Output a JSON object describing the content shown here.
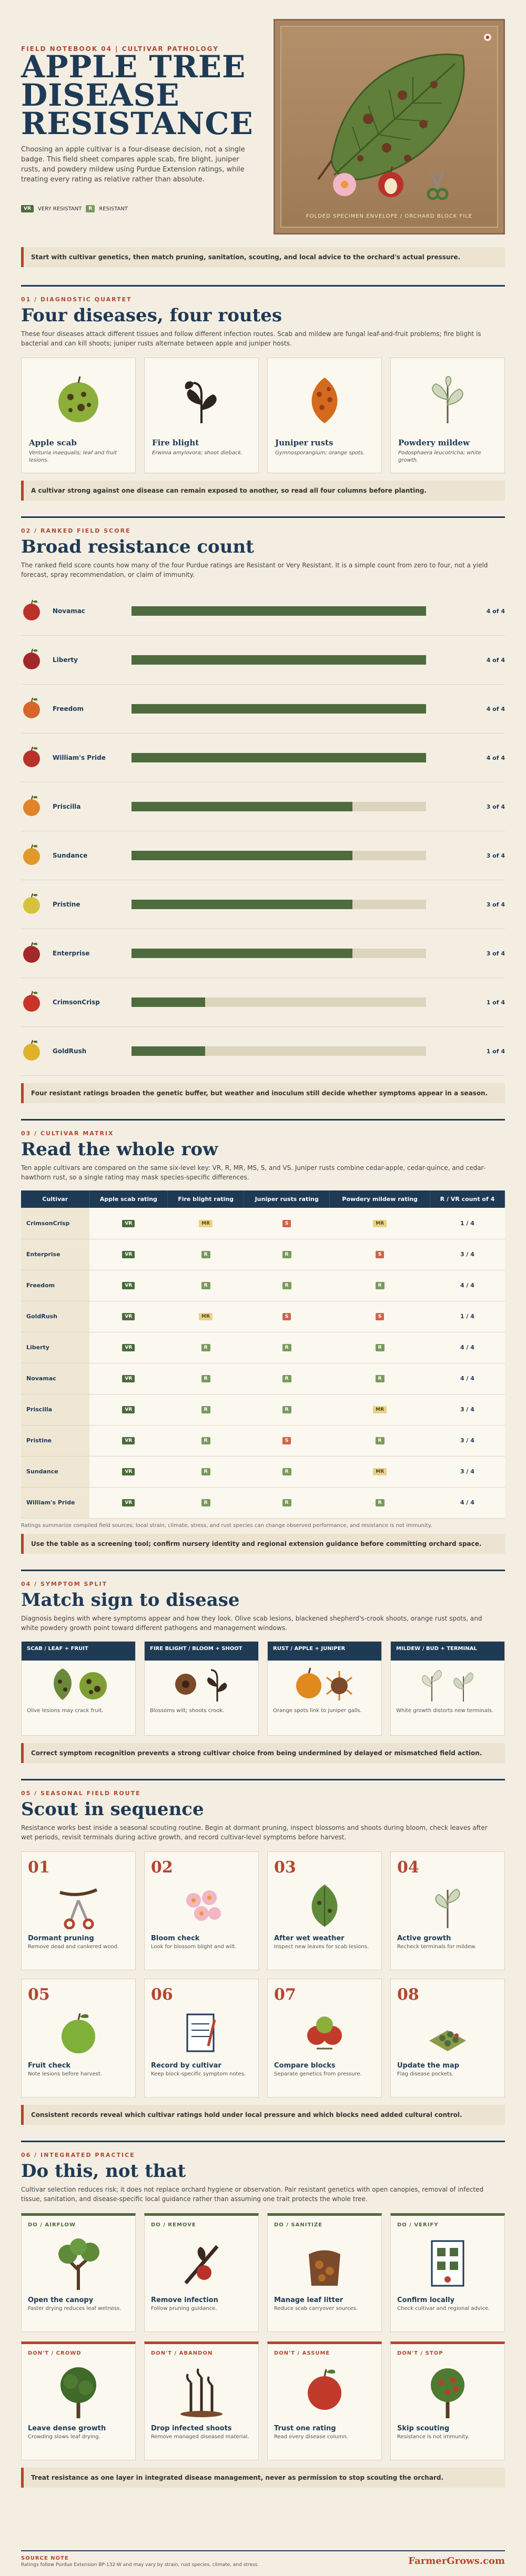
{
  "hero": {
    "kicker": "FIELD NOTEBOOK 04 | CULTIVAR PATHOLOGY",
    "title_lines": [
      "APPLE TREE",
      "DISEASE",
      "RESISTANCE"
    ],
    "intro": "Choosing an apple cultivar is a four-disease decision, not a single badge. This field sheet compares apple scab, fire blight, juniper rusts, and powdery mildew using Purdue Extension ratings, while treating every rating as relative rather than absolute.",
    "legend_vr": "VR",
    "legend_vr_label": "VERY RESISTANT",
    "legend_r": "R",
    "legend_r_label": "RESISTANT",
    "plate_caption": "FOLDED SPECIMEN ENVELOPE / ORCHARD BLOCK FILE"
  },
  "callout_top": "Start with cultivar genetics, then match pruning, sanitation, scouting, and local advice to the orchard's actual pressure.",
  "diseases": {
    "kicker": "01 / DIAGNOSTIC QUARTET",
    "title": "Four diseases, four routes",
    "intro": "These four diseases attack different tissues and follow different infection routes. Scab and mildew are fungal leaf-and-fruit problems; fire blight is bacterial and can kill shoots; juniper rusts alternate between apple and juniper hosts.",
    "cards": [
      {
        "name": "Apple scab",
        "sci": "Venturia inaequalis; leaf and fruit lesions."
      },
      {
        "name": "Fire blight",
        "sci": "Erwinia amylovora; shoot dieback."
      },
      {
        "name": "Juniper rusts",
        "sci": "Gymnosporangium; orange spots."
      },
      {
        "name": "Powdery mildew",
        "sci": "Podosphaera leucotricha; white growth."
      }
    ],
    "callout": "A cultivar strong against one disease can remain exposed to another, so read all four columns before planting."
  },
  "ranked": {
    "kicker": "02 / RANKED FIELD SCORE",
    "title": "Broad resistance count",
    "intro": "The ranked field score counts how many of the four Purdue ratings are Resistant or Very Resistant. It is a simple count from zero to four, not a yield forecast, spray recommendation, or claim of immunity.",
    "callout": "Four resistant ratings broaden the genetic buffer, but weather and inoculum still decide whether symptoms appear in a season."
  },
  "chart_data": {
    "type": "bar",
    "categories": [
      "Novamac",
      "Liberty",
      "Freedom",
      "William's Pride",
      "Priscilla",
      "Sundance",
      "Pristine",
      "Enterprise",
      "CrimsonCrisp",
      "GoldRush"
    ],
    "values": [
      4,
      4,
      4,
      4,
      3,
      3,
      3,
      3,
      1,
      1
    ],
    "value_labels": [
      "4 of 4",
      "4 of 4",
      "4 of 4",
      "4 of 4",
      "3 of 4",
      "3 of 4",
      "3 of 4",
      "3 of 4",
      "1 of 4",
      "1 of 4"
    ],
    "xlim": [
      0,
      4
    ],
    "orientation": "horizontal"
  },
  "matrix": {
    "kicker": "03 / CULTIVAR MATRIX",
    "title": "Read the whole row",
    "intro": "Ten apple cultivars are compared on the same six-level key: VR, R, MR, MS, S, and VS. Juniper rusts combine cedar-apple, cedar-quince, and cedar-hawthorn rust, so a single rating may mask species-specific differences.",
    "headers": [
      "Cultivar",
      "Apple scab rating",
      "Fire blight rating",
      "Juniper rusts rating",
      "Powdery mildew rating",
      "R / VR count of 4"
    ],
    "rows": [
      {
        "name": "CrimsonCrisp",
        "scab": "VR",
        "blight": "MR",
        "rust": "S",
        "mildew": "MR",
        "count": "1 / 4"
      },
      {
        "name": "Enterprise",
        "scab": "VR",
        "blight": "R",
        "rust": "R",
        "mildew": "S",
        "count": "3 / 4"
      },
      {
        "name": "Freedom",
        "scab": "VR",
        "blight": "R",
        "rust": "R",
        "mildew": "R",
        "count": "4 / 4"
      },
      {
        "name": "GoldRush",
        "scab": "VR",
        "blight": "MR",
        "rust": "S",
        "mildew": "S",
        "count": "1 / 4"
      },
      {
        "name": "Liberty",
        "scab": "VR",
        "blight": "R",
        "rust": "R",
        "mildew": "R",
        "count": "4 / 4"
      },
      {
        "name": "Novamac",
        "scab": "VR",
        "blight": "R",
        "rust": "R",
        "mildew": "R",
        "count": "4 / 4"
      },
      {
        "name": "Priscilla",
        "scab": "VR",
        "blight": "R",
        "rust": "R",
        "mildew": "MR",
        "count": "3 / 4"
      },
      {
        "name": "Pristine",
        "scab": "VR",
        "blight": "R",
        "rust": "S",
        "mildew": "R",
        "count": "3 / 4"
      },
      {
        "name": "Sundance",
        "scab": "VR",
        "blight": "R",
        "rust": "R",
        "mildew": "MR",
        "count": "3 / 4"
      },
      {
        "name": "William's Pride",
        "scab": "VR",
        "blight": "R",
        "rust": "R",
        "mildew": "R",
        "count": "4 / 4"
      }
    ],
    "note": "Ratings summarize compiled field sources; local strain, climate, stress, and rust species can change observed performance, and resistance is not immunity.",
    "callout": "Use the table as a screening tool; confirm nursery identity and regional extension guidance before committing orchard space."
  },
  "symptoms": {
    "kicker": "04 / SYMPTOM SPLIT",
    "title": "Match sign to disease",
    "intro": "Diagnosis begins with where symptoms appear and how they look. Olive scab lesions, blackened shepherd's-crook shoots, orange rust spots, and white powdery growth point toward different pathogens and management windows.",
    "cards": [
      {
        "head": "SCAB / LEAF + FRUIT",
        "desc": "Olive lesions may crack fruit."
      },
      {
        "head": "FIRE BLIGHT / BLOOM + SHOOT",
        "desc": "Blossoms wilt; shoots crook."
      },
      {
        "head": "RUST / APPLE + JUNIPER",
        "desc": "Orange spots link to juniper galls."
      },
      {
        "head": "MILDEW / BUD + TERMINAL",
        "desc": "White growth distorts new terminals."
      }
    ],
    "callout": "Correct symptom recognition prevents a strong cultivar choice from being undermined by delayed or mismatched field action."
  },
  "scout": {
    "kicker": "05 / SEASONAL FIELD ROUTE",
    "title": "Scout in sequence",
    "intro": "Resistance works best inside a seasonal scouting routine. Begin at dormant pruning, inspect blossoms and shoots during bloom, check leaves after wet periods, revisit terminals during active growth, and record cultivar-level symptoms before harvest.",
    "steps": [
      {
        "num": "01",
        "title": "Dormant pruning",
        "sub": "Remove dead and cankered wood."
      },
      {
        "num": "02",
        "title": "Bloom check",
        "sub": "Look for blossom blight and wilt."
      },
      {
        "num": "03",
        "title": "After wet weather",
        "sub": "Inspect new leaves for scab lesions."
      },
      {
        "num": "04",
        "title": "Active growth",
        "sub": "Recheck terminals for mildew."
      },
      {
        "num": "05",
        "title": "Fruit check",
        "sub": "Note lesions before harvest."
      },
      {
        "num": "06",
        "title": "Record by cultivar",
        "sub": "Keep block-specific symptom notes."
      },
      {
        "num": "07",
        "title": "Compare blocks",
        "sub": "Separate genetics from pressure."
      },
      {
        "num": "08",
        "title": "Update the map",
        "sub": "Flag disease pockets."
      }
    ],
    "callout": "Consistent records reveal which cultivar ratings hold under local pressure and which blocks need added cultural control."
  },
  "practice": {
    "kicker": "06 / INTEGRATED PRACTICE",
    "title": "Do this, not that",
    "intro": "Cultivar selection reduces risk; it does not replace orchard hygiene or observation. Pair resistant genetics with open canopies, removal of infected tissue, sanitation, and disease-specific local guidance rather than assuming one trait protects the whole tree.",
    "dos": [
      {
        "tag": "DO / AIRFLOW",
        "title": "Open the canopy",
        "sub": "Faster drying reduces leaf wetness."
      },
      {
        "tag": "DO / REMOVE",
        "title": "Remove infection",
        "sub": "Follow pruning guidance."
      },
      {
        "tag": "DO / SANITIZE",
        "title": "Manage leaf litter",
        "sub": "Reduce scab carryover sources."
      },
      {
        "tag": "DO / VERIFY",
        "title": "Confirm locally",
        "sub": "Check cultivar and regional advice."
      }
    ],
    "donts": [
      {
        "tag": "DON'T / CROWD",
        "title": "Leave dense growth",
        "sub": "Crowding slows leaf drying."
      },
      {
        "tag": "DON'T / ABANDON",
        "title": "Drop infected shoots",
        "sub": "Remove managed diseased material."
      },
      {
        "tag": "DON'T / ASSUME",
        "title": "Trust one rating",
        "sub": "Read every disease column."
      },
      {
        "tag": "DON'T / STOP",
        "title": "Skip scouting",
        "sub": "Resistance is not immunity."
      }
    ],
    "callout": "Treat resistance as one layer in integrated disease management, never as permission to stop scouting the orchard."
  },
  "footer": {
    "label": "SOURCE NOTE",
    "text": "Ratings follow Purdue Extension BP-132-W and may vary by strain, rust species, climate, and stress.",
    "brand": "FarmerGrows.com"
  },
  "colors": {
    "navy": "#1e3a55",
    "rust": "#b3462f",
    "green": "#4e6b3e",
    "cream": "#f4eee2"
  }
}
